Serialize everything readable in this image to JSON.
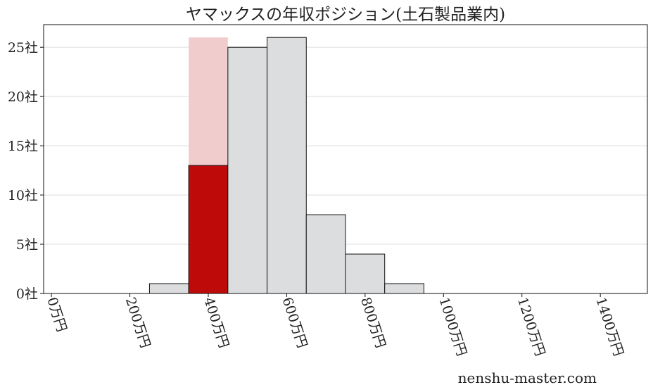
{
  "chart_data": {
    "type": "bar",
    "title": "ヤマックスの年収ポジション(土石製品業内)",
    "xlabel": "",
    "ylabel": "",
    "bins": [
      {
        "from": 250,
        "to": 350,
        "value": 1
      },
      {
        "from": 350,
        "to": 450,
        "value": 26,
        "highlight_value": 13
      },
      {
        "from": 450,
        "to": 550,
        "value": 25
      },
      {
        "from": 550,
        "to": 650,
        "value": 26
      },
      {
        "from": 650,
        "to": 750,
        "value": 8
      },
      {
        "from": 750,
        "to": 850,
        "value": 4
      },
      {
        "from": 850,
        "to": 950,
        "value": 1
      }
    ],
    "xlim": [
      -20,
      1520
    ],
    "ylim": [
      0,
      27.3
    ],
    "x_ticks": [
      0,
      200,
      400,
      600,
      800,
      1000,
      1200,
      1400
    ],
    "x_tick_labels": [
      "0万円",
      "200万円",
      "400万円",
      "600万円",
      "800万円",
      "1000万円",
      "1200万円",
      "1400万円"
    ],
    "y_ticks": [
      0,
      5,
      10,
      15,
      20,
      25
    ],
    "y_tick_labels": [
      "0社",
      "5社",
      "10社",
      "15社",
      "20社",
      "25社"
    ],
    "grid": "horizontal",
    "legend": "none",
    "colors": {
      "bar": "#dcdddf",
      "highlight": "#bf0a0a",
      "highlight_bin_background": "#f0cccc",
      "edge": "#111111",
      "grid": "#dddddd"
    }
  },
  "watermark": "nenshu-master.com"
}
